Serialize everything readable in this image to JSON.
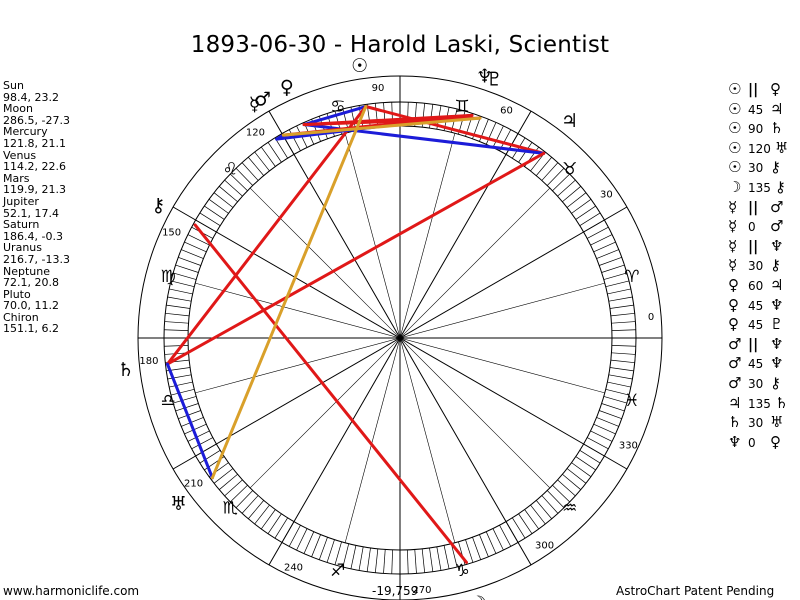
{
  "title": "1893-06-30 - Harold Laski, Scientist",
  "planets": [
    {
      "name": "Sun",
      "pos": "98.4, 23.2",
      "lon": 98.4,
      "glyph": "☉"
    },
    {
      "name": "Moon",
      "pos": "286.5, -27.3",
      "lon": 286.5,
      "glyph": "☽"
    },
    {
      "name": "Mercury",
      "pos": "121.8, 21.1",
      "lon": 121.8,
      "glyph": "☿"
    },
    {
      "name": "Venus",
      "pos": "114.2, 22.6",
      "lon": 114.2,
      "glyph": "♀"
    },
    {
      "name": "Mars",
      "pos": "119.9, 21.3",
      "lon": 119.9,
      "glyph": "♂"
    },
    {
      "name": "Jupiter",
      "pos": "52.1, 17.4",
      "lon": 52.1,
      "glyph": "♃"
    },
    {
      "name": "Saturn",
      "pos": "186.4, -0.3",
      "lon": 186.4,
      "glyph": "♄"
    },
    {
      "name": "Uranus",
      "pos": "216.7, -13.3",
      "lon": 216.7,
      "glyph": "♅"
    },
    {
      "name": "Neptune",
      "pos": "72.1, 20.8",
      "lon": 72.1,
      "glyph": "♆"
    },
    {
      "name": "Pluto",
      "pos": "70.0, 11.2",
      "lon": 70.0,
      "glyph": "♇"
    },
    {
      "name": "Chiron",
      "pos": "151.1, 6.2",
      "lon": 151.1,
      "glyph": "⚷"
    }
  ],
  "aspects": [
    {
      "p1": "☉",
      "sym": "||",
      "p2": "♀"
    },
    {
      "p1": "☉",
      "sym": "45",
      "p2": "♃"
    },
    {
      "p1": "☉",
      "sym": "90",
      "p2": "♄"
    },
    {
      "p1": "☉",
      "sym": "120",
      "p2": "♅"
    },
    {
      "p1": "☉",
      "sym": "30",
      "p2": "⚷"
    },
    {
      "p1": "☽",
      "sym": "135",
      "p2": "⚷"
    },
    {
      "p1": "☿",
      "sym": "||",
      "p2": "♂"
    },
    {
      "p1": "☿",
      "sym": "0",
      "p2": "♂"
    },
    {
      "p1": "☿",
      "sym": "||",
      "p2": "♆"
    },
    {
      "p1": "☿",
      "sym": "30",
      "p2": "⚷"
    },
    {
      "p1": "♀",
      "sym": "60",
      "p2": "♃"
    },
    {
      "p1": "♀",
      "sym": "45",
      "p2": "♆"
    },
    {
      "p1": "♀",
      "sym": "45",
      "p2": "♇"
    },
    {
      "p1": "♂",
      "sym": "||",
      "p2": "♆"
    },
    {
      "p1": "♂",
      "sym": "45",
      "p2": "♆"
    },
    {
      "p1": "♂",
      "sym": "30",
      "p2": "⚷"
    },
    {
      "p1": "♃",
      "sym": "135",
      "p2": "♄"
    },
    {
      "p1": "♄",
      "sym": "30",
      "p2": "♅"
    },
    {
      "p1": "♆",
      "sym": "0",
      "p2": "♀"
    }
  ],
  "zodiac": [
    {
      "sign": "aries",
      "glyph": "♈"
    },
    {
      "sign": "taurus",
      "glyph": "♉"
    },
    {
      "sign": "gemini",
      "glyph": "♊"
    },
    {
      "sign": "cancer",
      "glyph": "♋"
    },
    {
      "sign": "leo",
      "glyph": "♌"
    },
    {
      "sign": "virgo",
      "glyph": "♍"
    },
    {
      "sign": "libra",
      "glyph": "♎"
    },
    {
      "sign": "scorpio",
      "glyph": "♏"
    },
    {
      "sign": "sagittarius",
      "glyph": "♐"
    },
    {
      "sign": "capricorn",
      "glyph": "♑"
    },
    {
      "sign": "aquarius",
      "glyph": "♒"
    },
    {
      "sign": "pisces",
      "glyph": "♓"
    }
  ],
  "degree_labels": [
    "0",
    "30",
    "60",
    "90",
    "120",
    "150",
    "180",
    "210",
    "240",
    "270",
    "300",
    "330"
  ],
  "aspect_lines": [
    {
      "from": "Sun",
      "to": "Venus",
      "color": "#1c1cd8"
    },
    {
      "from": "Sun",
      "to": "Jupiter",
      "color": "#e01818"
    },
    {
      "from": "Sun",
      "to": "Saturn",
      "color": "#e01818"
    },
    {
      "from": "Mercury",
      "to": "Mars",
      "color": "#1c1cd8"
    },
    {
      "from": "Mercury",
      "to": "Neptune",
      "color": "#1c1cd8"
    },
    {
      "from": "Venus",
      "to": "Jupiter",
      "color": "#1c1cd8"
    },
    {
      "from": "Venus",
      "to": "Neptune",
      "color": "#e01818"
    },
    {
      "from": "Venus",
      "to": "Pluto",
      "color": "#e01818"
    },
    {
      "from": "Mars",
      "to": "Neptune",
      "color": "#e01818"
    },
    {
      "from": "Jupiter",
      "to": "Saturn",
      "color": "#e01818"
    },
    {
      "from": "Saturn",
      "to": "Uranus",
      "color": "#1c1cd8"
    },
    {
      "from": "Chiron",
      "to": "Moon",
      "color": "#e01818"
    },
    {
      "from": "Sun",
      "to": "Uranus",
      "color": "#d9a02a"
    },
    {
      "from": "Mars",
      "to": "Pluto",
      "color": "#d9a02a"
    }
  ],
  "colors": {
    "red": "#e01818",
    "blue": "#1c1cd8",
    "gold": "#d9a02a"
  },
  "footer": {
    "website": "www.harmoniclife.com",
    "center_value": "-19,759",
    "patent": "AstroChart Patent Pending"
  }
}
